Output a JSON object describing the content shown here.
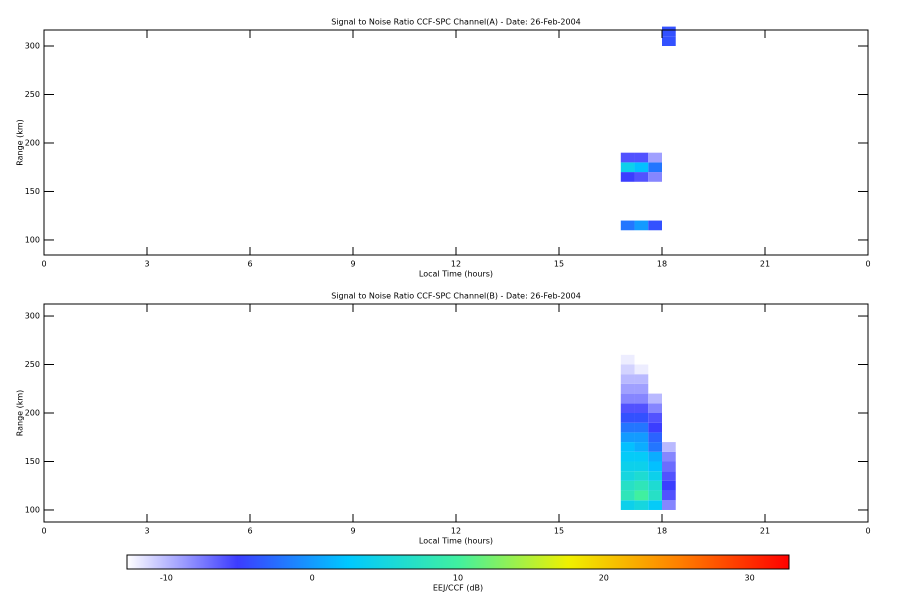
{
  "chart_data": [
    {
      "type": "heatmap",
      "title": "Signal to Noise Ratio CCF-SPC Channel(A) - Date: 26-Feb-2004",
      "xlabel": "Local Time (hours)",
      "ylabel": "Range (km)",
      "xlim": [
        0,
        24
      ],
      "xticks": [
        0,
        3,
        6,
        9,
        12,
        15,
        18,
        21,
        {
          "value": 24,
          "label": "0"
        }
      ],
      "ylim": [
        84.5,
        316.5
      ],
      "yticks": [
        100,
        150,
        200,
        250,
        300
      ],
      "x": [
        16.8,
        17.2,
        17.6,
        18.0,
        18.4
      ],
      "y": [
        100,
        110,
        120,
        130,
        140,
        150,
        160,
        170,
        180,
        190,
        200,
        210,
        220,
        230,
        240,
        250,
        260,
        270,
        280,
        290,
        300,
        310,
        320
      ],
      "z": [
        [
          null,
          null,
          null,
          null
        ],
        [
          -2,
          0,
          -4,
          null
        ],
        [
          null,
          null,
          null,
          null
        ],
        [
          null,
          null,
          null,
          null
        ],
        [
          null,
          null,
          null,
          null
        ],
        [
          null,
          null,
          null,
          null
        ],
        [
          -5,
          -6,
          -8,
          null
        ],
        [
          4,
          2,
          -2,
          null
        ],
        [
          -6,
          -6,
          -9,
          null
        ],
        [
          null,
          null,
          null,
          null
        ],
        [
          null,
          null,
          null,
          null
        ],
        [
          null,
          null,
          null,
          null
        ],
        [
          null,
          null,
          null,
          null
        ],
        [
          null,
          null,
          null,
          null
        ],
        [
          null,
          null,
          null,
          null
        ],
        [
          null,
          null,
          null,
          null
        ],
        [
          null,
          null,
          null,
          null
        ],
        [
          null,
          null,
          null,
          null
        ],
        [
          null,
          null,
          null,
          null
        ],
        [
          null,
          null,
          null,
          null
        ],
        [
          null,
          null,
          null,
          -4
        ],
        [
          null,
          null,
          null,
          -4
        ]
      ]
    },
    {
      "type": "heatmap",
      "title": "Signal to Noise Ratio CCF-SPC Channel(B) - Date: 26-Feb-2004",
      "xlabel": "Local Time (hours)",
      "ylabel": "Range (km)",
      "xlim": [
        0,
        24
      ],
      "xticks": [
        0,
        3,
        6,
        9,
        12,
        15,
        18,
        21,
        {
          "value": 24,
          "label": "0"
        }
      ],
      "ylim": [
        87.6,
        312.4
      ],
      "yticks": [
        100,
        150,
        200,
        250,
        300
      ],
      "x": [
        16.8,
        17.2,
        17.6,
        18.0,
        18.4
      ],
      "y": [
        100,
        110,
        120,
        130,
        140,
        150,
        160,
        170,
        180,
        190,
        200,
        210,
        220,
        230,
        240,
        250,
        260,
        270,
        280,
        290,
        300,
        310,
        320
      ],
      "z": [
        [
          4,
          5,
          3,
          -8
        ],
        [
          8,
          10,
          7,
          -6
        ],
        [
          7,
          8,
          6,
          -5
        ],
        [
          5,
          6,
          4,
          -6
        ],
        [
          4,
          4,
          2,
          -7
        ],
        [
          3,
          3,
          1,
          -8
        ],
        [
          2,
          1,
          -2,
          -10
        ],
        [
          0,
          0,
          -3,
          null
        ],
        [
          -2,
          -2,
          -5,
          null
        ],
        [
          -4,
          -4,
          -6,
          null
        ],
        [
          -6,
          -6,
          -8,
          null
        ],
        [
          -8,
          -8,
          -10,
          null
        ],
        [
          -9,
          -9,
          null,
          null
        ],
        [
          -10,
          -10,
          null,
          null
        ],
        [
          -11,
          -12,
          null,
          null
        ],
        [
          -12,
          null,
          null,
          null
        ],
        [
          null,
          null,
          null,
          null
        ],
        [
          null,
          null,
          null,
          null
        ],
        [
          null,
          null,
          null,
          null
        ],
        [
          null,
          null,
          null,
          null
        ],
        [
          null,
          null,
          null,
          null
        ],
        [
          null,
          null,
          null,
          null
        ]
      ]
    },
    {
      "type": "colorbar",
      "label": "EEJ/CCF (dB)",
      "zlim": [
        -12.7,
        32.7
      ],
      "zticks": [
        -10,
        0,
        10,
        20,
        30
      ],
      "colorscale": [
        "#ffffff",
        "#3c3cff",
        "#00c8ff",
        "#40f0a0",
        "#f0f000",
        "#ff8000",
        "#ff0000"
      ]
    }
  ]
}
